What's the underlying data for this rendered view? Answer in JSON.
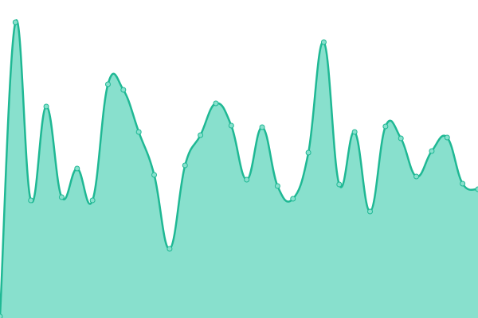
{
  "chart_data": {
    "type": "area",
    "categories": [
      null,
      null,
      null,
      null,
      null,
      null,
      null,
      null,
      null,
      null,
      null,
      null,
      null,
      null,
      null,
      null,
      null,
      null,
      null,
      null,
      null,
      null,
      null,
      null,
      null,
      null,
      null,
      null,
      null,
      null,
      null,
      null
    ],
    "values": [
      2,
      372,
      148,
      266,
      152,
      188,
      148,
      294,
      287,
      234,
      180,
      87,
      192,
      230,
      270,
      242,
      174,
      240,
      166,
      150,
      208,
      347,
      168,
      234,
      134,
      241,
      226,
      178,
      210,
      227,
      169,
      162
    ],
    "ylim": [
      0,
      400
    ],
    "color": "#1fb894",
    "fill": "#88e0cd"
  }
}
